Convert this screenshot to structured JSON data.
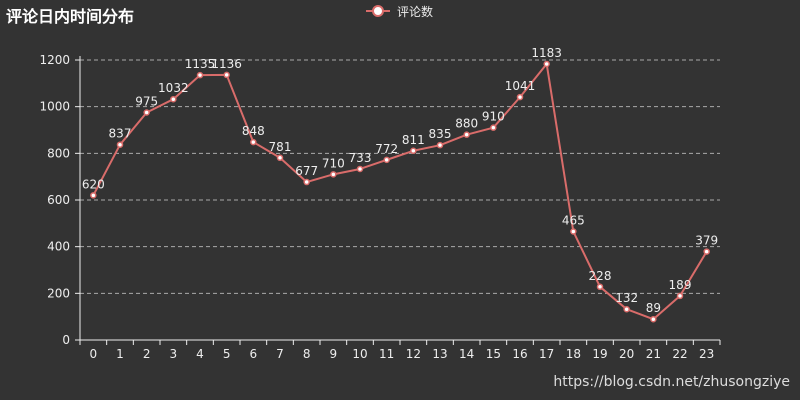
{
  "chart_data": {
    "type": "line",
    "title": "评论日内时间分布",
    "legend": {
      "label": "评论数",
      "placement": "top-center"
    },
    "categories": [
      "0",
      "1",
      "2",
      "3",
      "4",
      "5",
      "6",
      "7",
      "8",
      "9",
      "10",
      "11",
      "12",
      "13",
      "14",
      "15",
      "16",
      "17",
      "18",
      "19",
      "20",
      "21",
      "22",
      "23"
    ],
    "series": [
      {
        "name": "评论数",
        "values": [
          620,
          837,
          975,
          1032,
          1135,
          1136,
          848,
          781,
          677,
          710,
          733,
          772,
          811,
          835,
          880,
          910,
          1041,
          1183,
          465,
          228,
          132,
          89,
          189,
          379
        ]
      }
    ],
    "ylim": [
      0,
      1200
    ],
    "yticks": [
      0,
      200,
      400,
      600,
      800,
      1000,
      1200
    ],
    "grid": true,
    "colors": {
      "background": "#333333",
      "line": "#d96c6a",
      "text": "#eeeeee",
      "grid": "#aaaaaa"
    }
  },
  "watermark": "https://blog.csdn.net/zhusongziye"
}
